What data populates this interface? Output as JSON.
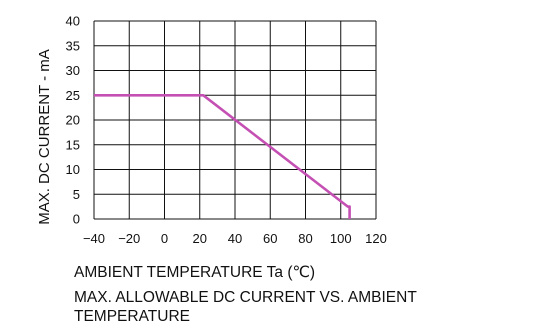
{
  "chart_data": {
    "type": "line",
    "xlabel": "AMBIENT TEMPERATURE Ta (℃)",
    "ylabel": "MAX. DC CURRENT - mA",
    "title_lines": [
      "MAX. ALLOWABLE DC CURRENT VS. AMBIENT",
      "TEMPERATURE"
    ],
    "xlim": [
      -40,
      120
    ],
    "ylim": [
      0,
      40
    ],
    "xticks": [
      -40,
      -20,
      0,
      20,
      40,
      60,
      80,
      100,
      120
    ],
    "yticks": [
      0,
      5,
      10,
      15,
      20,
      25,
      30,
      35,
      40
    ],
    "grid": true,
    "series": [
      {
        "x": [
          -40,
          22,
          104,
          105,
          105
        ],
        "y": [
          25,
          25,
          2.5,
          2.5,
          0
        ]
      }
    ],
    "colors": {
      "line": "#c550b4",
      "grid": "#111111"
    }
  }
}
